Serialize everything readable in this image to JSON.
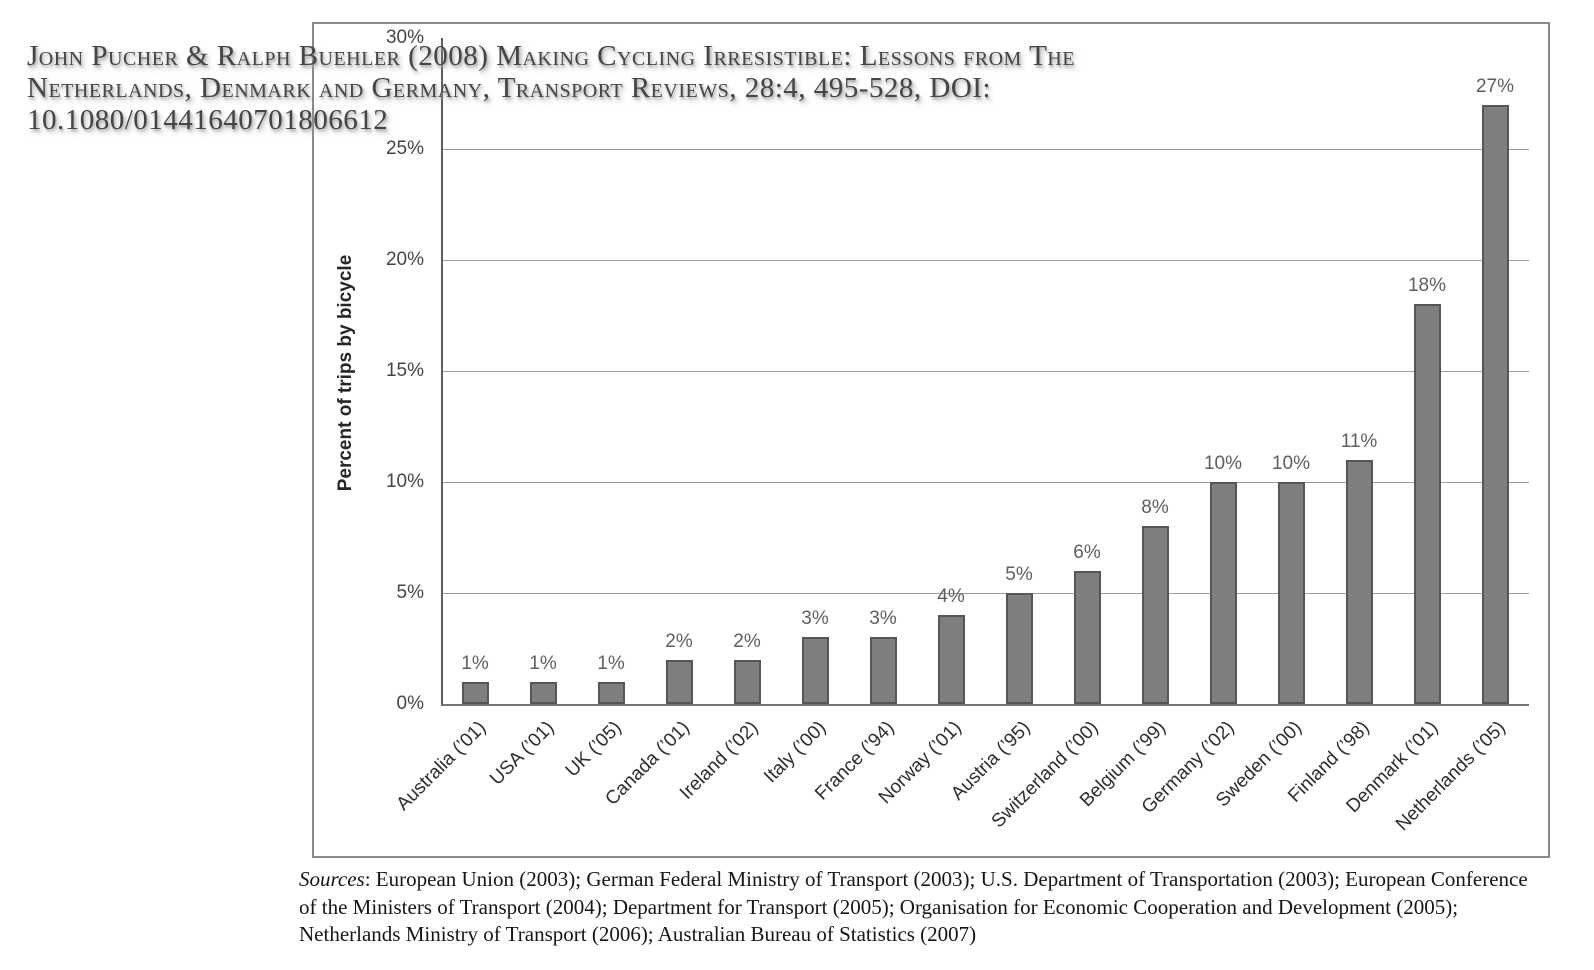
{
  "citation": {
    "lines": [
      "John Pucher & Ralph Buehler (2008) Making Cycling Irresistible: Lessons from The",
      "Netherlands, Denmark and Germany, Transport Reviews, 28:4, 495-528, DOI:",
      "10.1080/01441640701806612"
    ]
  },
  "chart_data": {
    "type": "bar",
    "title": "",
    "xlabel": "",
    "ylabel": "Percent of trips by bicycle",
    "categories": [
      "Australia (’01)",
      "USA (’01)",
      "UK (’05)",
      "Canada (’01)",
      "Ireland (’02)",
      "Italy (’00)",
      "France (’94)",
      "Norway (’01)",
      "Austria (’95)",
      "Switzerland (’00)",
      "Belgium (’99)",
      "Germany (’02)",
      "Sweden (’00)",
      "Finland (’98)",
      "Denmark (’01)",
      "Netherlands (’05)"
    ],
    "values": [
      1,
      1,
      1,
      2,
      2,
      3,
      3,
      4,
      5,
      6,
      8,
      10,
      10,
      11,
      18,
      27
    ],
    "value_labels": [
      "1%",
      "1%",
      "1%",
      "2%",
      "2%",
      "3%",
      "3%",
      "4%",
      "5%",
      "6%",
      "8%",
      "10%",
      "10%",
      "11%",
      "18%",
      "27%"
    ],
    "y_ticks": [
      "0%",
      "5%",
      "10%",
      "15%",
      "20%",
      "25%",
      "30%"
    ],
    "y_tick_values": [
      0,
      5,
      10,
      15,
      20,
      25,
      30
    ],
    "ylim": [
      0,
      30
    ],
    "grid": true,
    "legend": "none",
    "x_tick_rotation": -45,
    "bar_color": "#7f7f7f",
    "bar_border_color": "#565656"
  },
  "sources": {
    "label": "Sources",
    "rest": ": European Union (2003); German Federal Ministry of Transport (2003); U.S. Department of Transportation (2003); European Conference of the Ministers of Transport (2004); Department for Transport (2005); Organisation for Economic Cooperation and Development (2005); Netherlands Ministry of Transport (2006); Australian Bureau of Statistics (2007)"
  }
}
